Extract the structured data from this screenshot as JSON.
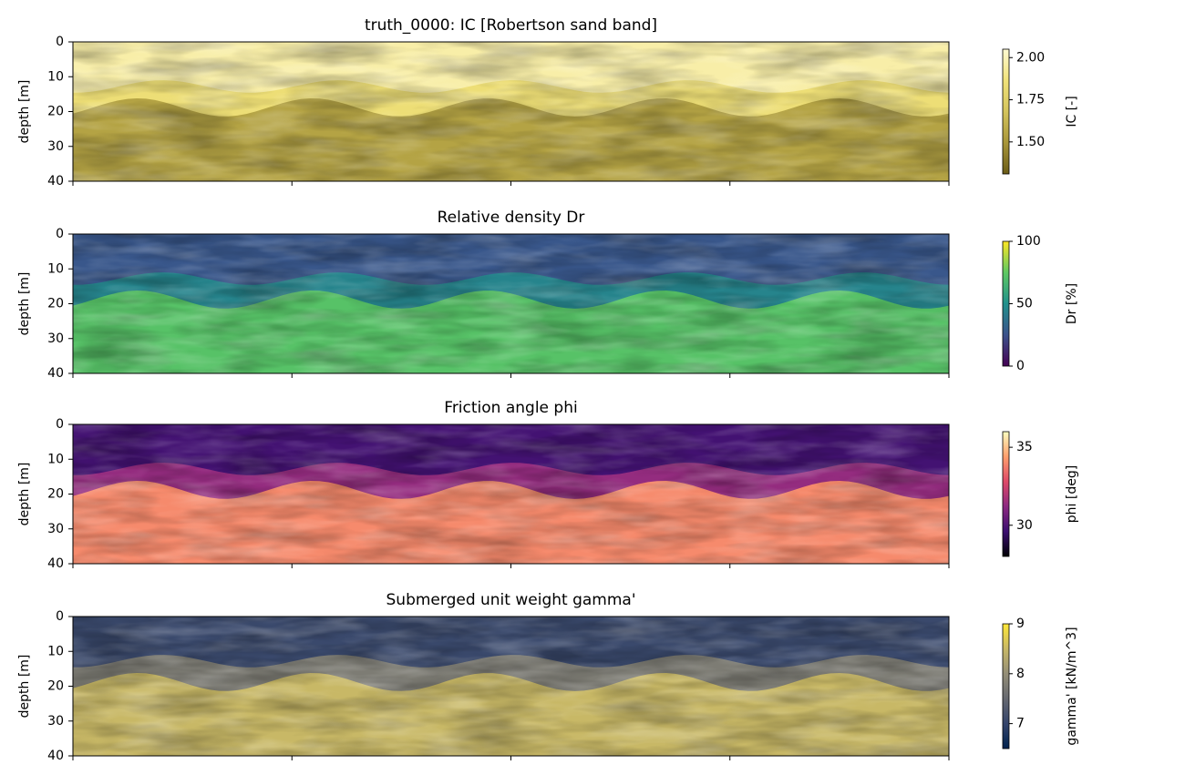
{
  "chart_data": [
    {
      "type": "heatmap",
      "title": "truth_0000: IC [Robertson sand band]",
      "ylabel": "depth [m]",
      "ylim": [
        40,
        0
      ],
      "yticks": [
        0,
        10,
        20,
        30,
        40
      ],
      "colorbar": {
        "label": "IC [-]",
        "lim": [
          1.31,
          2.05
        ],
        "ticks": [
          {
            "value": 1.5,
            "label": "1.50"
          },
          1.75,
          {
            "value": 2,
            "label": "2.00"
          }
        ],
        "colors": [
          "#6b5c17",
          "#a8963a",
          "#d4c45c",
          "#f0e27a",
          "#fffad2"
        ]
      }
    },
    {
      "type": "heatmap",
      "title": "Relative density Dr",
      "ylabel": "depth [m]",
      "ylim": [
        40,
        0
      ],
      "yticks": [
        0,
        10,
        20,
        30,
        40
      ],
      "colorbar": {
        "label": "Dr [%]",
        "lim": [
          0,
          100
        ],
        "ticks": [
          0,
          50,
          100
        ],
        "colors": [
          "#440154",
          "#3b528b",
          "#21918c",
          "#5ec962",
          "#fde725"
        ]
      }
    },
    {
      "type": "heatmap",
      "title": "Friction angle phi",
      "ylabel": "depth [m]",
      "ylim": [
        40,
        0
      ],
      "yticks": [
        0,
        10,
        20,
        30,
        40
      ],
      "colorbar": {
        "label": "phi [deg]",
        "lim": [
          28,
          36
        ],
        "ticks": [
          30,
          35
        ],
        "colors": [
          "#000004",
          "#3b0f70",
          "#8c2981",
          "#de4968",
          "#fe9f6d",
          "#fcfdbf"
        ]
      }
    },
    {
      "type": "heatmap",
      "title": "Submerged unit weight gamma'",
      "ylabel": "depth [m]",
      "ylim": [
        40,
        0
      ],
      "yticks": [
        0,
        10,
        20,
        30,
        40
      ],
      "colorbar": {
        "label": "gamma' [kN/m^3]",
        "lim": [
          6.5,
          9
        ],
        "ticks": [
          7,
          8,
          9
        ],
        "colors": [
          "#00224e",
          "#35456c",
          "#666970",
          "#948e77",
          "#c8b866",
          "#fee838"
        ]
      }
    }
  ]
}
